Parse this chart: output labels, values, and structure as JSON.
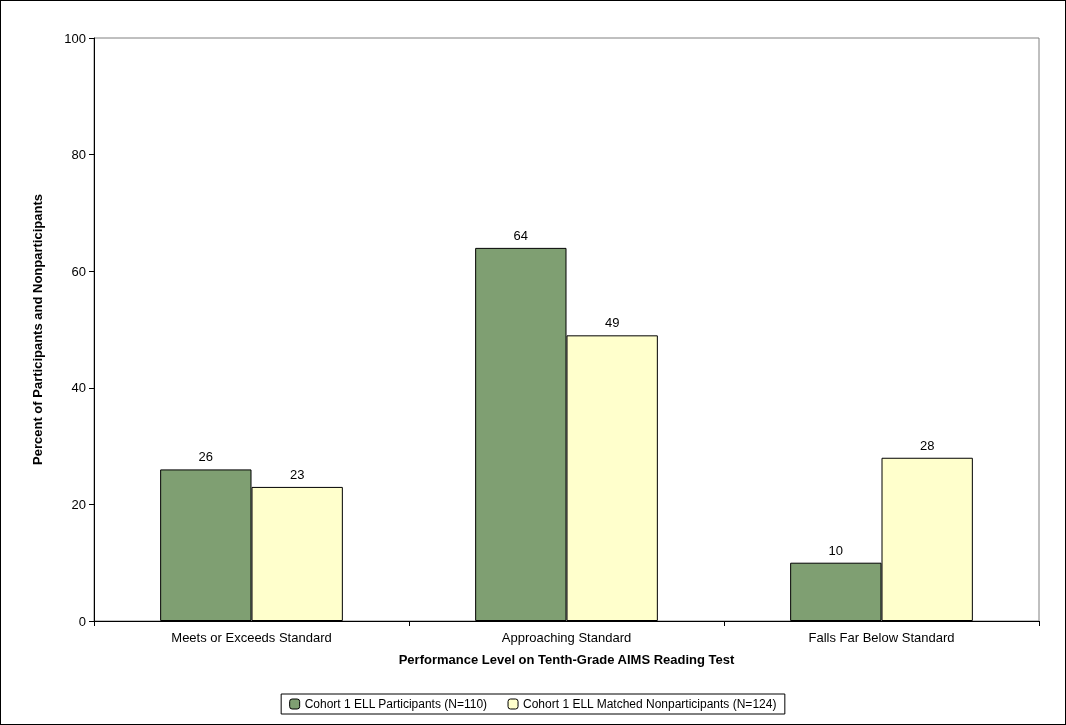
{
  "chart_data": {
    "type": "bar",
    "xlabel": "Performance Level on Tenth-Grade AIMS Reading Test",
    "ylabel": "Percent of Participants and Nonparticipants",
    "categories": [
      "Meets or Exceeds Standard",
      "Approaching Standard",
      "Falls Far Below Standard"
    ],
    "series": [
      {
        "name": "Cohort 1 ELL Participants (N=110)",
        "color": "#7f9f72",
        "values": [
          26,
          64,
          10
        ]
      },
      {
        "name": "Cohort 1 ELL Matched Nonparticipants (N=124)",
        "color": "#ffffcc",
        "values": [
          23,
          49,
          28
        ]
      }
    ],
    "ylim": [
      0,
      100
    ],
    "yticks": [
      0,
      20,
      40,
      60,
      80,
      100
    ],
    "data_labels": true,
    "grid": false,
    "legend": "bottom"
  }
}
